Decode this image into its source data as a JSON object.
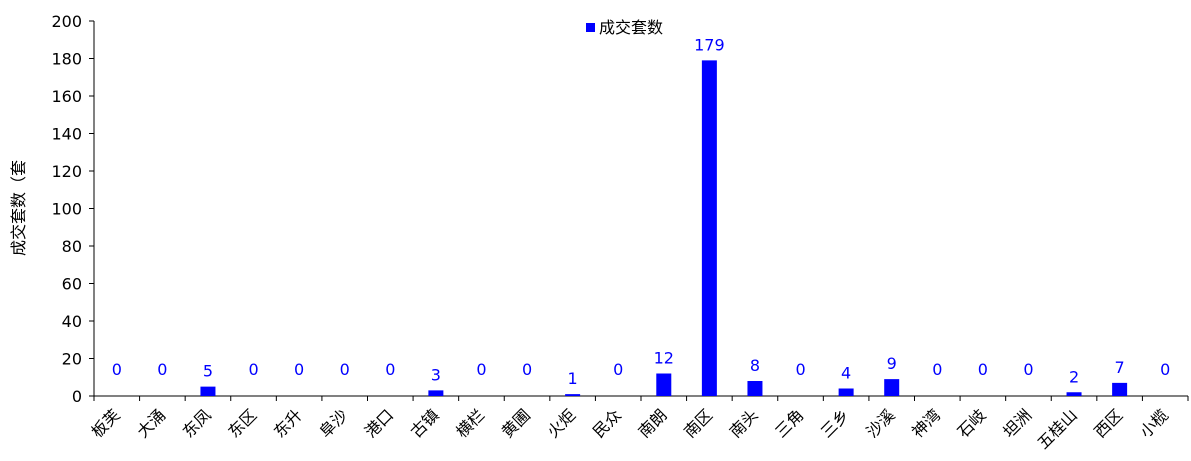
{
  "chart_data": {
    "type": "bar",
    "categories": [
      "板芙",
      "大涌",
      "东凤",
      "东区",
      "东升",
      "阜沙",
      "港口",
      "古镇",
      "横栏",
      "黄圃",
      "火炬",
      "民众",
      "南朗",
      "南区",
      "南头",
      "三角",
      "三乡",
      "沙溪",
      "神湾",
      "石岐",
      "坦洲",
      "五桂山",
      "西区",
      "小榄"
    ],
    "series": [
      {
        "name": "成交套数",
        "values": [
          0,
          0,
          5,
          0,
          0,
          0,
          0,
          3,
          0,
          0,
          1,
          0,
          12,
          179,
          8,
          0,
          4,
          9,
          0,
          0,
          0,
          2,
          7,
          0
        ],
        "color": "#0000ff"
      }
    ],
    "ylabel": "成交套数（套",
    "ylim": [
      0,
      200
    ],
    "yticks": [
      0,
      20,
      40,
      60,
      80,
      100,
      120,
      140,
      160,
      180,
      200
    ],
    "legend_position": "top-center",
    "grid": false
  }
}
